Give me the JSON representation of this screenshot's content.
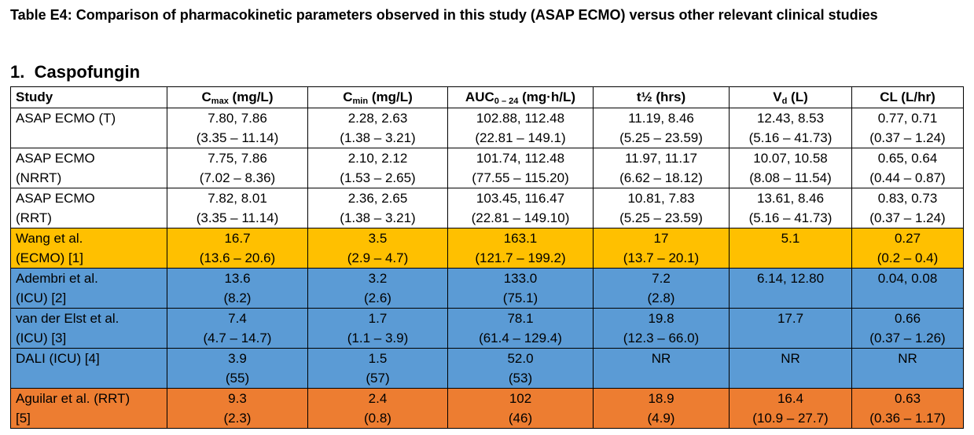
{
  "caption": "Table E4: Comparison of pharmacokinetic parameters observed in this study (ASAP ECMO) versus other relevant clinical studies",
  "section": {
    "number": "1.",
    "title": "Caspofungin"
  },
  "columns": {
    "study": "Study",
    "cmax": {
      "base": "C",
      "sub": "max",
      "unit": " (mg/L)"
    },
    "cmin": {
      "base": "C",
      "sub": "min",
      "unit": " (mg/L)"
    },
    "auc": {
      "base": "AUC",
      "sub": "0 – 24",
      "unit": " (mg·h/L)"
    },
    "thalf": "t½ (hrs)",
    "vd": {
      "base": "V",
      "sub": "d",
      "unit": " (L)"
    },
    "cl": "CL (L/hr)"
  },
  "rows": [
    {
      "color": "white",
      "study": [
        "ASAP ECMO (T)",
        ""
      ],
      "cmax": [
        "7.80, 7.86",
        "(3.35 – 11.14)"
      ],
      "cmin": [
        "2.28, 2.63",
        "(1.38 – 3.21)"
      ],
      "auc": [
        "102.88, 112.48",
        "(22.81 – 149.1)"
      ],
      "thalf": [
        "11.19, 8.46",
        "(5.25 – 23.59)"
      ],
      "vd": [
        "12.43, 8.53",
        "(5.16 – 41.73)"
      ],
      "cl": [
        "0.77, 0.71",
        "(0.37 – 1.24)"
      ]
    },
    {
      "color": "white",
      "study": [
        "ASAP ECMO",
        "(NRRT)"
      ],
      "cmax": [
        "7.75, 7.86",
        "(7.02 – 8.36)"
      ],
      "cmin": [
        "2.10, 2.12",
        "(1.53 – 2.65)"
      ],
      "auc": [
        "101.74, 112.48",
        "(77.55 – 115.20)"
      ],
      "thalf": [
        "11.97, 11.17",
        "(6.62 – 18.12)"
      ],
      "vd": [
        "10.07, 10.58",
        "(8.08 – 11.54)"
      ],
      "cl": [
        "0.65, 0.64",
        "(0.44 – 0.87)"
      ]
    },
    {
      "color": "white",
      "study": [
        "ASAP ECMO",
        "(RRT)"
      ],
      "cmax": [
        "7.82, 8.01",
        "(3.35 – 11.14)"
      ],
      "cmin": [
        "2.36, 2.65",
        "(1.38 – 3.21)"
      ],
      "auc": [
        "103.45, 116.47",
        "(22.81 – 149.10)"
      ],
      "thalf": [
        "10.81, 7.83",
        "(5.25 – 23.59)"
      ],
      "vd": [
        "13.61, 8.46",
        "(5.16 – 41.73)"
      ],
      "cl": [
        "0.83, 0.73",
        "(0.37 – 1.24)"
      ]
    },
    {
      "color": "yellow",
      "study": [
        "Wang et al.",
        "(ECMO) [1]"
      ],
      "cmax": [
        "16.7",
        "(13.6 – 20.6)"
      ],
      "cmin": [
        "3.5",
        "(2.9 – 4.7)"
      ],
      "auc": [
        "163.1",
        "(121.7 – 199.2)"
      ],
      "thalf": [
        "17",
        "(13.7 – 20.1)"
      ],
      "vd": [
        "5.1",
        ""
      ],
      "cl": [
        "0.27",
        "(0.2 – 0.4)"
      ]
    },
    {
      "color": "blue",
      "study": [
        "Adembri et al.",
        "(ICU) [2]"
      ],
      "cmax": [
        "13.6",
        "(8.2)"
      ],
      "cmin": [
        "3.2",
        "(2.6)"
      ],
      "auc": [
        "133.0",
        "(75.1)"
      ],
      "thalf": [
        "7.2",
        "(2.8)"
      ],
      "vd": [
        "6.14, 12.80",
        ""
      ],
      "cl": [
        "0.04, 0.08",
        ""
      ]
    },
    {
      "color": "blue",
      "study": [
        "van der Elst et al.",
        "(ICU) [3]"
      ],
      "cmax": [
        "7.4",
        "(4.7 – 14.7)"
      ],
      "cmin": [
        "1.7",
        "(1.1 – 3.9)"
      ],
      "auc": [
        "78.1",
        "(61.4 – 129.4)"
      ],
      "thalf": [
        "19.8",
        "(12.3 – 66.0)"
      ],
      "vd": [
        "17.7",
        ""
      ],
      "cl": [
        "0.66",
        "(0.37 – 1.26)"
      ]
    },
    {
      "color": "blue",
      "study": [
        "DALI (ICU) [4]",
        ""
      ],
      "cmax": [
        "3.9",
        "(55)"
      ],
      "cmin": [
        "1.5",
        "(57)"
      ],
      "auc": [
        "52.0",
        "(53)"
      ],
      "thalf": [
        "NR",
        ""
      ],
      "vd": [
        "NR",
        ""
      ],
      "cl": [
        "NR",
        ""
      ]
    },
    {
      "color": "orange",
      "study": [
        "Aguilar et al. (RRT)",
        "[5]"
      ],
      "cmax": [
        "9.3",
        "(2.3)"
      ],
      "cmin": [
        "2.4",
        "(0.8)"
      ],
      "auc": [
        "102",
        "(46)"
      ],
      "thalf": [
        "18.9",
        "(4.9)"
      ],
      "vd": [
        "16.4",
        "(10.9 – 27.7)"
      ],
      "cl": [
        "0.63",
        "(0.36 – 1.17)"
      ]
    }
  ]
}
